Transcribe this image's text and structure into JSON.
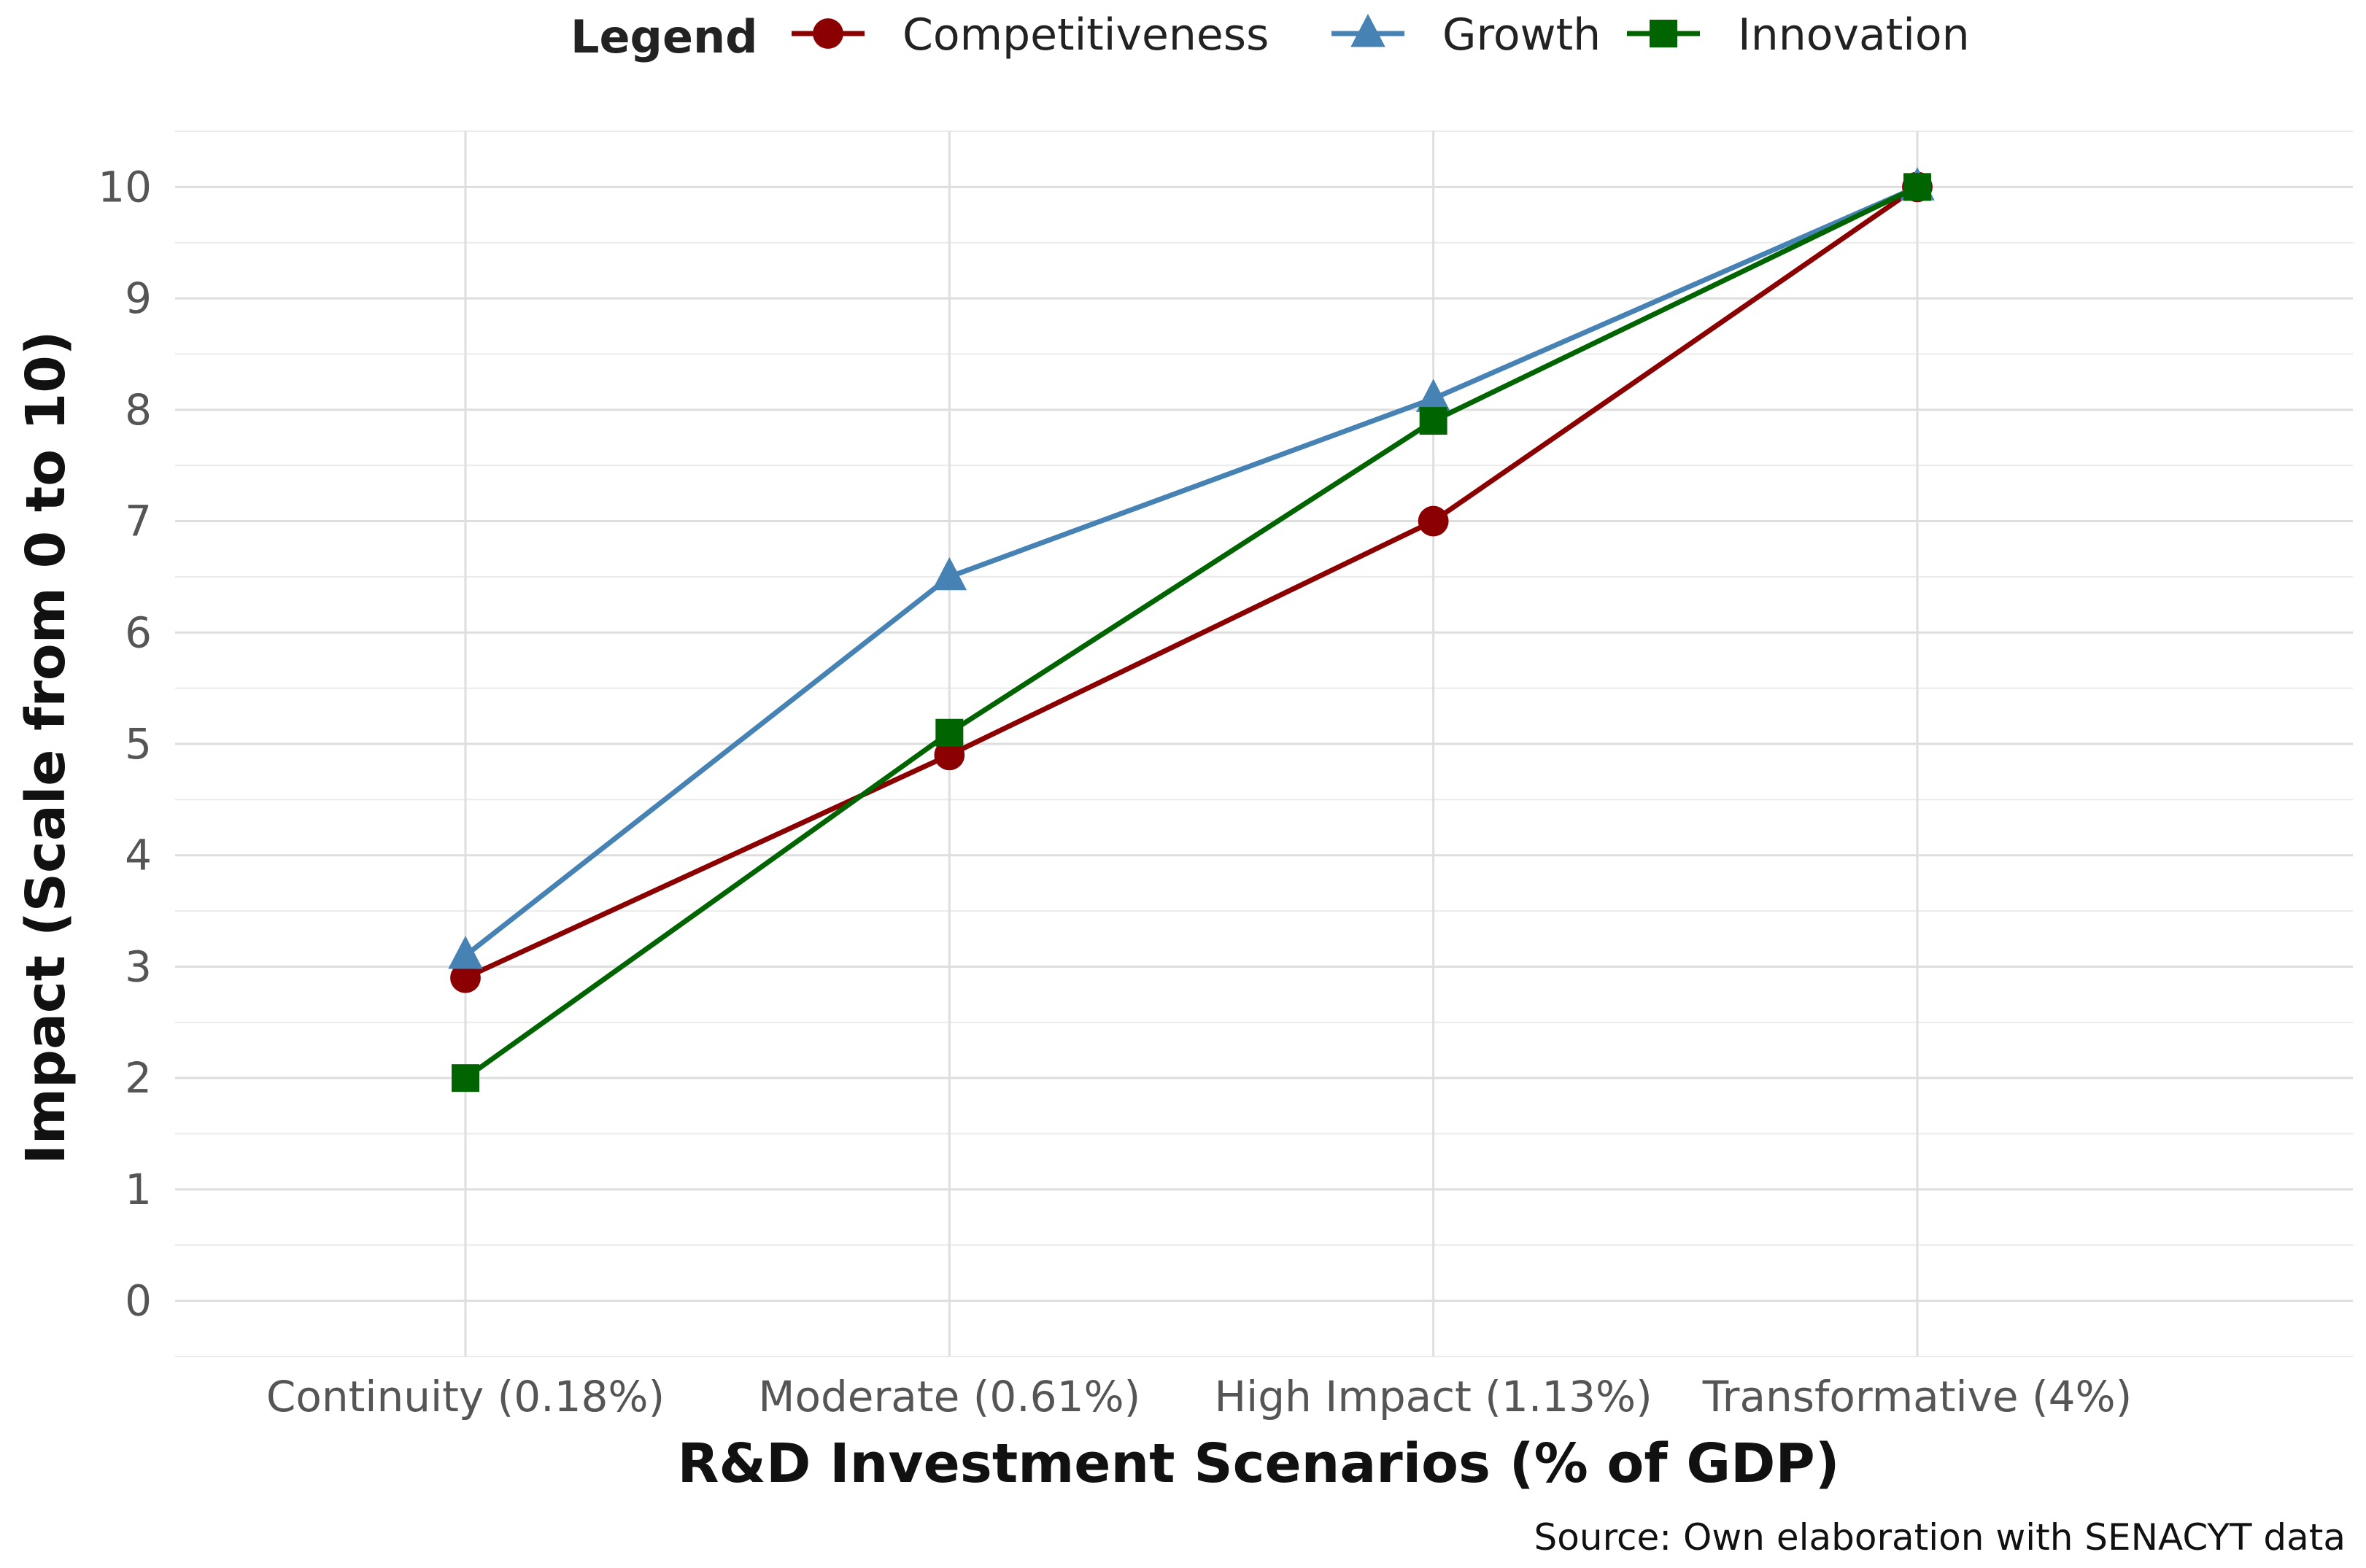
{
  "chart_data": {
    "type": "line",
    "title": "",
    "xlabel": "R&D Investment Scenarios (% of GDP)",
    "ylabel": "Impact (Scale from 0 to 10)",
    "categories": [
      "Continuity (0.18%)",
      "Moderate (0.61%)",
      "High Impact (1.13%)",
      "Transformative (4%)"
    ],
    "ylim": [
      -0.5,
      10.5
    ],
    "yticks": [
      "0",
      "1",
      "2",
      "3",
      "4",
      "5",
      "6",
      "7",
      "8",
      "9",
      "10"
    ],
    "grid": true,
    "legend_title": "Legend",
    "legend_position": "top",
    "caption": "Source: Own elaboration with SENACYT data",
    "series": [
      {
        "name": "Competitiveness",
        "color": "#8B0000",
        "marker": "circle",
        "values": [
          2.9,
          4.9,
          7.0,
          10.0
        ]
      },
      {
        "name": "Growth",
        "color": "#4682B4",
        "marker": "triangle",
        "values": [
          3.1,
          6.5,
          8.1,
          10.0
        ]
      },
      {
        "name": "Innovation",
        "color": "#006400",
        "marker": "square",
        "values": [
          2.0,
          5.1,
          7.9,
          10.0
        ]
      }
    ]
  }
}
